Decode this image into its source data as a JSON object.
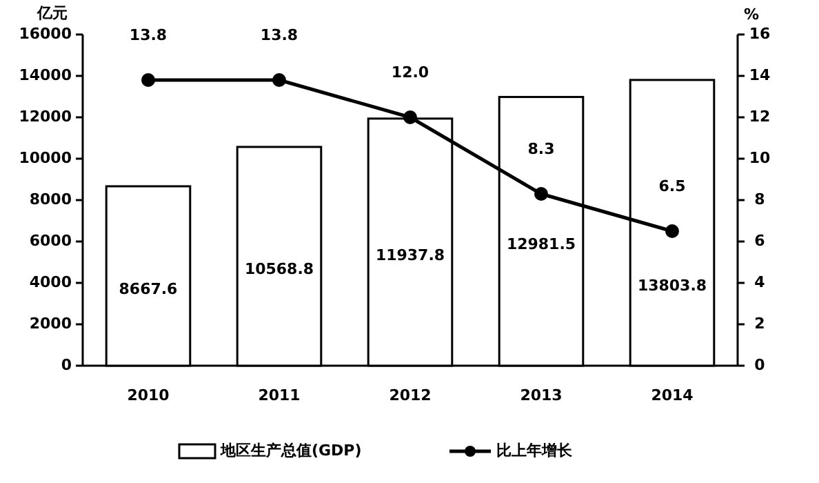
{
  "chart_data": {
    "type": "bar",
    "ylabel": "亿元",
    "y2label": "%",
    "categories": [
      "2010",
      "2011",
      "2012",
      "2013",
      "2014"
    ],
    "series": [
      {
        "name": "地区生产总值(GDP)",
        "color": "#ffffff",
        "values": [
          8667.6,
          10568.8,
          11937.8,
          12981.5,
          13803.8
        ]
      },
      {
        "name": "比上年增长",
        "type": "line",
        "axis": "y2",
        "color": "#000000",
        "marker": "circle",
        "values": [
          13.8,
          13.8,
          12.0,
          8.3,
          6.5
        ],
        "value_labels": [
          "13.8",
          "13.8",
          "12.0",
          "8.3",
          "6.5"
        ]
      }
    ],
    "ylim": [
      0,
      16000
    ],
    "yticks": [
      0,
      2000,
      4000,
      6000,
      8000,
      10000,
      12000,
      14000,
      16000
    ],
    "y2lim": [
      0,
      16
    ],
    "y2ticks": [
      0,
      2,
      4,
      6,
      8,
      10,
      12,
      14,
      16
    ],
    "data_labels": true,
    "legend": "bottom",
    "grid": false
  }
}
